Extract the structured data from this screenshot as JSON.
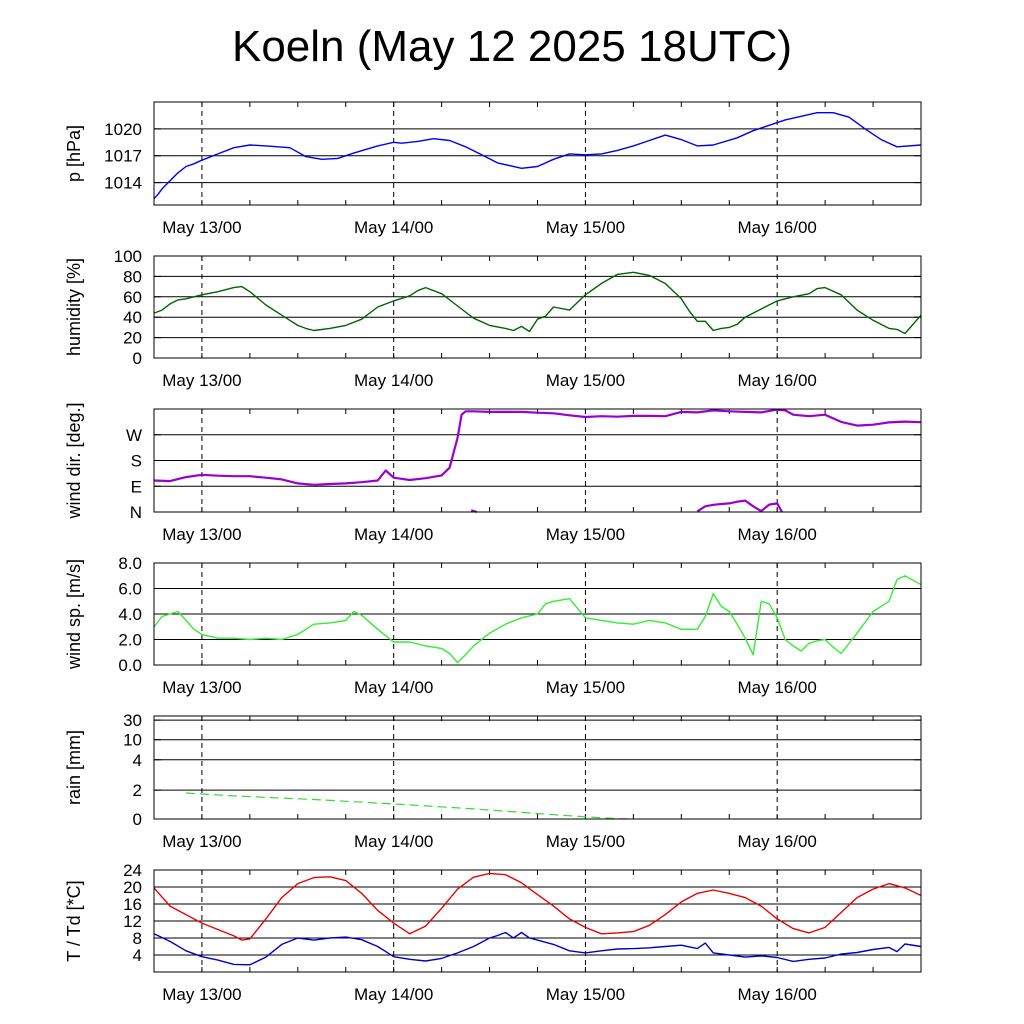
{
  "title": "Koeln (May 12 2025 18UTC)",
  "x_axis": {
    "unit": "hours since start of plot",
    "range": [
      0,
      96
    ],
    "day_ticks": [
      6,
      30,
      54,
      78
    ],
    "day_labels": [
      "May 13/00",
      "May 14/00",
      "May 15/00",
      "May 16/00"
    ]
  },
  "colors": {
    "pressure": "#0000ee",
    "humidity": "#006400",
    "wind_dir": "#9a00d0",
    "wind_speed": "#33ee33",
    "rain": "#33dd33",
    "temperature": "#ee0000",
    "dewpoint": "#0000cc"
  },
  "chart_data": [
    {
      "type": "line",
      "ylabel": "p [hPa]",
      "ylim": [
        1011.5,
        1023
      ],
      "yticks": [
        1014,
        1017,
        1020
      ],
      "ytick_labels": [
        "1014",
        "1017",
        "1020"
      ],
      "grid_y": [
        1014,
        1017,
        1020
      ],
      "series": [
        {
          "color_key": "pressure",
          "x": [
            0,
            0.5,
            1,
            2,
            3,
            4,
            5,
            6,
            8,
            10,
            12,
            14,
            17,
            19,
            21,
            23,
            25,
            28,
            30,
            31,
            33,
            35,
            37,
            39,
            41,
            43,
            46,
            48,
            50,
            52,
            54,
            56,
            58,
            60,
            62,
            64,
            66,
            68,
            70,
            73,
            75,
            77,
            79,
            81,
            83,
            85,
            87,
            89,
            91,
            93,
            96
          ],
          "y": [
            1012.2,
            1012.7,
            1013.3,
            1014.2,
            1015.1,
            1015.8,
            1016.1,
            1016.5,
            1017.2,
            1017.9,
            1018.2,
            1018.1,
            1017.9,
            1016.9,
            1016.6,
            1016.7,
            1017.3,
            1018.1,
            1018.5,
            1018.4,
            1018.6,
            1018.9,
            1018.7,
            1018.0,
            1017.1,
            1016.2,
            1015.6,
            1015.8,
            1016.6,
            1017.2,
            1017.1,
            1017.2,
            1017.6,
            1018.1,
            1018.7,
            1019.3,
            1018.8,
            1018.1,
            1018.2,
            1019.0,
            1019.8,
            1020.4,
            1021.0,
            1021.4,
            1021.8,
            1021.8,
            1021.3,
            1020.0,
            1018.8,
            1018.0,
            1018.2
          ]
        }
      ]
    },
    {
      "type": "line",
      "ylabel": "humidity [%]",
      "ylim": [
        0,
        100
      ],
      "yticks": [
        0,
        20,
        40,
        60,
        80,
        100
      ],
      "ytick_labels": [
        "0",
        "20",
        "40",
        "60",
        "80",
        "100"
      ],
      "grid_y": [
        20,
        40,
        60,
        80
      ],
      "series": [
        {
          "color_key": "humidity",
          "x": [
            0,
            1,
            2,
            3,
            4,
            5,
            6,
            8,
            10,
            11,
            12,
            14,
            16,
            17,
            18,
            19,
            20,
            22,
            24,
            26,
            28,
            30,
            32,
            33,
            34,
            36,
            38,
            40,
            42,
            44,
            45,
            46,
            47,
            48,
            49,
            50,
            52,
            54,
            56,
            58,
            60,
            62,
            64,
            66,
            67,
            68,
            69,
            70,
            71,
            72,
            73,
            74,
            76,
            78,
            80,
            82,
            83,
            84,
            86,
            88,
            90,
            92,
            93,
            94,
            96
          ],
          "y": [
            44,
            47,
            53,
            57,
            58,
            60,
            62,
            65,
            69,
            70,
            65,
            52,
            42,
            37,
            32,
            29,
            27,
            29,
            32,
            38,
            50,
            56,
            61,
            66,
            69,
            63,
            51,
            39,
            32,
            29,
            27,
            31,
            26,
            38,
            41,
            50,
            47,
            62,
            73,
            82,
            84,
            81,
            73,
            58,
            46,
            36,
            36,
            27,
            29,
            30,
            33,
            40,
            48,
            56,
            60,
            63,
            68,
            69,
            62,
            47,
            37,
            29,
            28,
            24,
            42
          ]
        }
      ]
    },
    {
      "type": "line",
      "ylabel": "wind dir. [deg.]",
      "ylim": [
        0,
        360
      ],
      "yticks": [
        0,
        90,
        180,
        270
      ],
      "ytick_labels": [
        "N",
        "E",
        "S",
        "W"
      ],
      "grid_y": [
        90,
        180,
        270
      ],
      "series": [
        {
          "color_key": "wind_dir",
          "x": [
            0,
            2,
            4,
            6,
            8,
            10,
            12,
            14,
            16,
            18,
            20,
            22,
            24,
            26,
            28,
            29,
            30,
            32,
            34,
            36,
            37,
            38,
            38.5,
            39,
            40,
            42,
            44,
            46,
            48,
            50,
            52,
            54,
            56,
            58,
            60,
            62,
            64,
            66,
            68,
            70,
            72,
            74,
            76,
            78,
            79,
            80,
            82,
            84,
            86,
            88,
            90,
            92,
            94,
            96
          ],
          "y": [
            110,
            108,
            122,
            130,
            127,
            125,
            125,
            120,
            114,
            100,
            95,
            98,
            100,
            104,
            110,
            145,
            120,
            112,
            118,
            128,
            155,
            260,
            340,
            352,
            352,
            350,
            350,
            350,
            347,
            345,
            338,
            332,
            335,
            333,
            336,
            336,
            335,
            350,
            348,
            355,
            352,
            350,
            348,
            358,
            355,
            340,
            335,
            340,
            315,
            302,
            305,
            313,
            316,
            314
          ]
        },
        {
          "color_key": "wind_dir",
          "x": [
            68,
            69,
            70,
            71,
            72,
            73,
            74,
            75,
            76,
            77,
            78,
            78.6
          ],
          "y": [
            2,
            20,
            25,
            28,
            30,
            36,
            40,
            20,
            3,
            26,
            30,
            0
          ]
        },
        {
          "color_key": "wind_dir",
          "x": [
            39.7,
            40.4
          ],
          "y": [
            6,
            0
          ]
        }
      ]
    },
    {
      "type": "line",
      "ylabel": "wind sp. [m/s]",
      "ylim": [
        0,
        8
      ],
      "yticks": [
        0,
        2,
        4,
        6,
        8
      ],
      "ytick_labels": [
        "0.0",
        "2.0",
        "4.0",
        "6.0",
        "8.0"
      ],
      "grid_y": [
        2,
        4,
        6
      ],
      "series": [
        {
          "color_key": "wind_speed",
          "x": [
            0,
            1,
            2,
            3,
            4,
            5,
            6,
            8,
            10,
            12,
            14,
            16,
            18,
            20,
            22,
            24,
            25,
            26,
            28,
            30,
            32,
            34,
            36,
            37,
            38,
            39,
            40,
            42,
            44,
            46,
            48,
            49,
            50,
            52,
            54,
            56,
            58,
            60,
            62,
            64,
            66,
            68,
            69,
            70,
            71,
            72,
            73,
            74,
            75,
            76,
            77,
            78,
            79,
            80,
            81,
            82,
            83,
            84,
            85,
            86,
            88,
            90,
            92,
            93,
            94,
            96
          ],
          "y": [
            3.0,
            3.8,
            4.0,
            4.2,
            3.5,
            2.8,
            2.4,
            2.1,
            2.1,
            2.0,
            2.1,
            2.0,
            2.4,
            3.2,
            3.3,
            3.5,
            4.2,
            3.9,
            2.8,
            1.8,
            1.8,
            1.5,
            1.3,
            0.9,
            0.2,
            0.8,
            1.5,
            2.5,
            3.2,
            3.7,
            4.0,
            4.8,
            5.0,
            5.2,
            3.7,
            3.5,
            3.3,
            3.2,
            3.5,
            3.3,
            2.8,
            2.8,
            3.8,
            5.6,
            4.6,
            4.2,
            3.2,
            2.1,
            0.8,
            5.0,
            4.8,
            3.7,
            2.0,
            1.5,
            1.1,
            1.7,
            1.9,
            2.0,
            1.4,
            0.9,
            2.5,
            4.2,
            5.0,
            6.7,
            7.0,
            6.3
          ]
        }
      ]
    },
    {
      "type": "line",
      "ylabel": "rain [mm]",
      "yticks": [
        0,
        2,
        4,
        10,
        30
      ],
      "ytick_labels": [
        "0",
        "2",
        "4",
        "10",
        "30"
      ],
      "grid_y": [
        2,
        4,
        10,
        30
      ],
      "series": [
        {
          "color_key": "rain",
          "x": [
            4,
            10,
            20,
            30,
            40,
            50,
            54,
            58,
            60
          ],
          "y": [
            1.8,
            1.6,
            1.35,
            1.05,
            0.7,
            0.3,
            0.15,
            0.02,
            0
          ]
        }
      ]
    },
    {
      "type": "line",
      "ylabel": "T / Td [*C]",
      "ylim": [
        0,
        24
      ],
      "yticks": [
        4,
        8,
        12,
        16,
        20,
        24
      ],
      "ytick_labels": [
        "4",
        "8",
        "12",
        "16",
        "20",
        "24"
      ],
      "grid_y": [
        4,
        8,
        12,
        16,
        20
      ],
      "series": [
        {
          "color_key": "temperature",
          "x": [
            0,
            2,
            4,
            6,
            8,
            10,
            11,
            12,
            14,
            16,
            18,
            20,
            22,
            24,
            26,
            28,
            30,
            32,
            34,
            36,
            38,
            40,
            42,
            44,
            46,
            48,
            50,
            52,
            54,
            56,
            58,
            60,
            62,
            64,
            66,
            68,
            70,
            72,
            74,
            76,
            78,
            80,
            82,
            84,
            86,
            88,
            90,
            92,
            94,
            96
          ],
          "y": [
            19.8,
            15.5,
            13.5,
            11.5,
            10,
            8.5,
            7.5,
            7.8,
            12.5,
            17.5,
            20.8,
            22.2,
            22.4,
            21.5,
            18.5,
            14.5,
            11.5,
            9,
            10.8,
            15,
            19.5,
            22.3,
            23.2,
            22.9,
            21,
            18.2,
            15.5,
            12.5,
            10.5,
            9,
            9.2,
            9.5,
            11,
            13.5,
            16.5,
            18.5,
            19.3,
            18.5,
            17.5,
            15.5,
            12.5,
            10.2,
            9.2,
            10.5,
            14,
            17.5,
            19.5,
            20.8,
            19.8,
            18
          ]
        },
        {
          "color_key": "dewpoint",
          "x": [
            0,
            2,
            4,
            6,
            8,
            10,
            12,
            14,
            16,
            18,
            20,
            22,
            24,
            26,
            28,
            30,
            32,
            34,
            36,
            38,
            40,
            42,
            43,
            44,
            45,
            46,
            47,
            48,
            50,
            52,
            54,
            56,
            58,
            60,
            62,
            64,
            66,
            68,
            69,
            70,
            72,
            74,
            76,
            78,
            80,
            82,
            84,
            86,
            88,
            90,
            92,
            93,
            94,
            96
          ],
          "y": [
            9,
            7.2,
            5,
            3.6,
            2.8,
            1.8,
            1.7,
            3.5,
            6.5,
            8,
            7.5,
            8,
            8.2,
            7.6,
            6,
            3.6,
            3,
            2.6,
            3.2,
            4.5,
            6,
            8,
            8.6,
            9.3,
            8,
            9.3,
            8,
            7.5,
            6.5,
            5,
            4.5,
            5,
            5.4,
            5.5,
            5.7,
            6,
            6.3,
            5.5,
            6.8,
            4.5,
            4,
            3.5,
            3.8,
            3.4,
            2.5,
            3,
            3.3,
            4.2,
            4.6,
            5.3,
            5.8,
            4.8,
            6.6,
            6
          ]
        }
      ]
    }
  ]
}
